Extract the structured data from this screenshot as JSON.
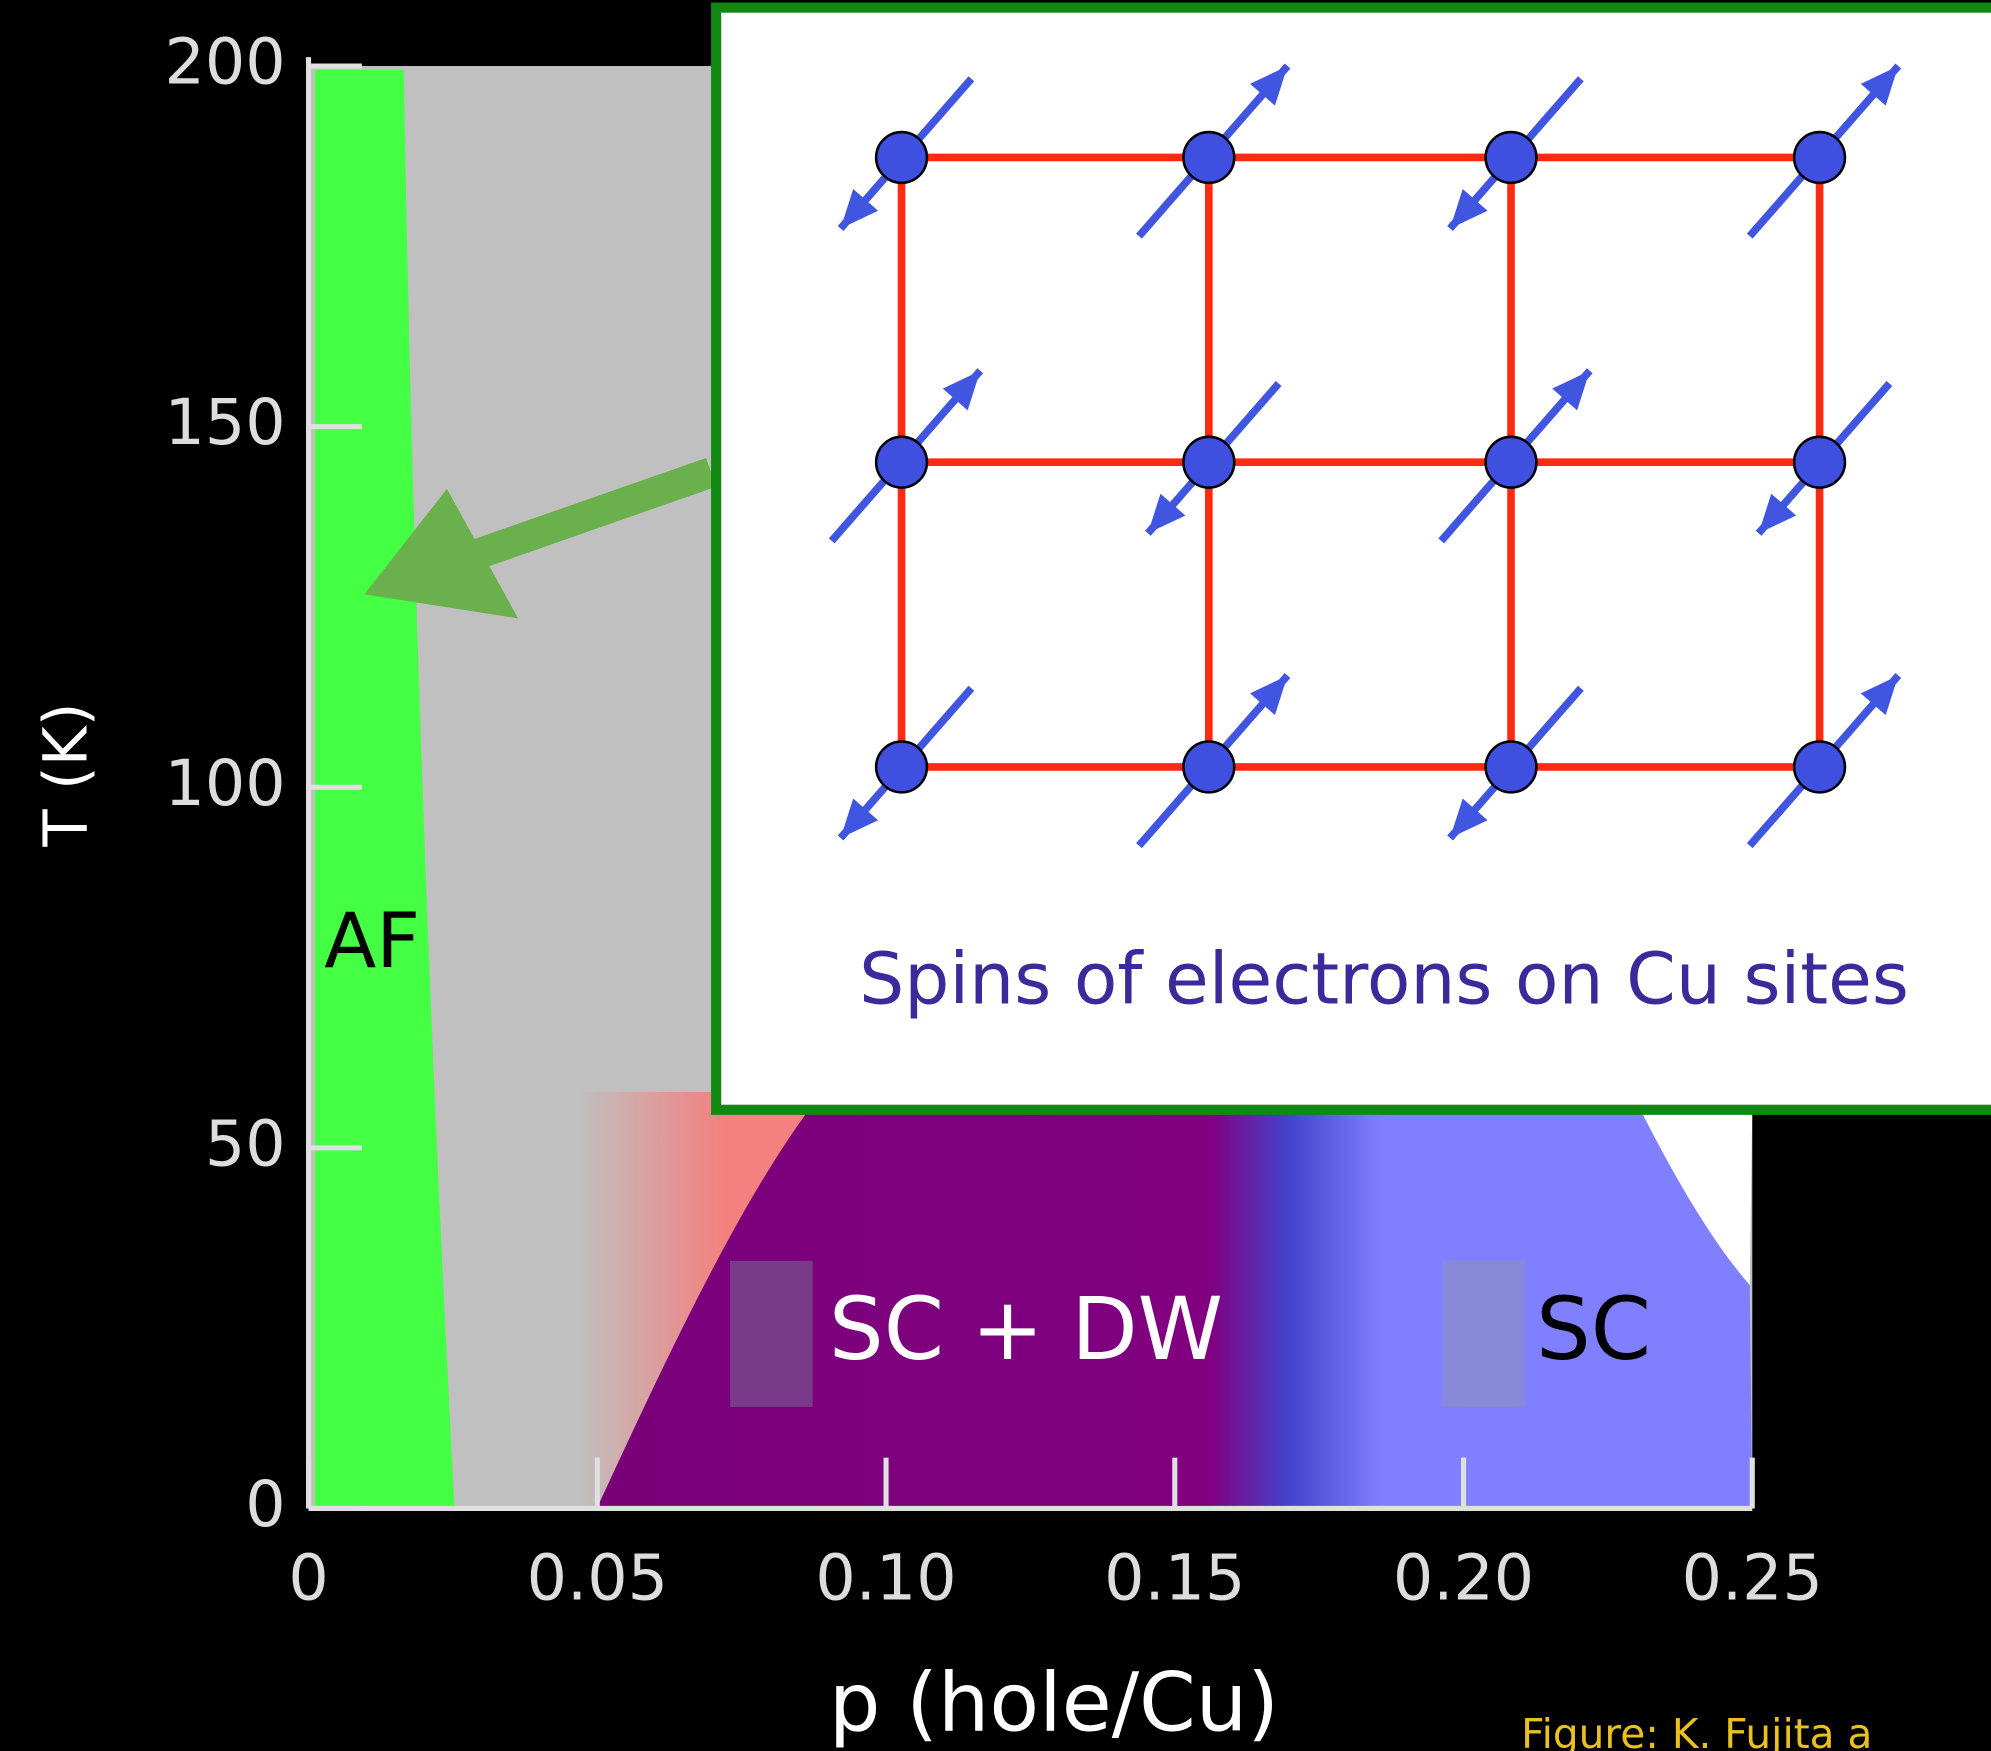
{
  "chart_data": {
    "type": "phase-diagram",
    "x_label": "p (hole/Cu)",
    "y_label": "T (K)",
    "xlim": [
      0,
      0.25
    ],
    "ylim": [
      0,
      200
    ],
    "xticks": [
      0,
      {
        "value": 0.05,
        "label": "0.05"
      },
      {
        "value": 0.1,
        "label": "0.10"
      },
      {
        "value": 0.15,
        "label": "0.15"
      },
      {
        "value": 0.2,
        "label": "0.20"
      },
      {
        "value": 0.25,
        "label": "0.25"
      }
    ],
    "yticks": [
      0,
      50,
      100,
      150,
      200
    ],
    "annotations": [
      "AF",
      "SC + DW",
      "SC"
    ],
    "inset_caption": "Spins of electrons on Cu sites",
    "credit": "Figure: K. Fujita a"
  }
}
